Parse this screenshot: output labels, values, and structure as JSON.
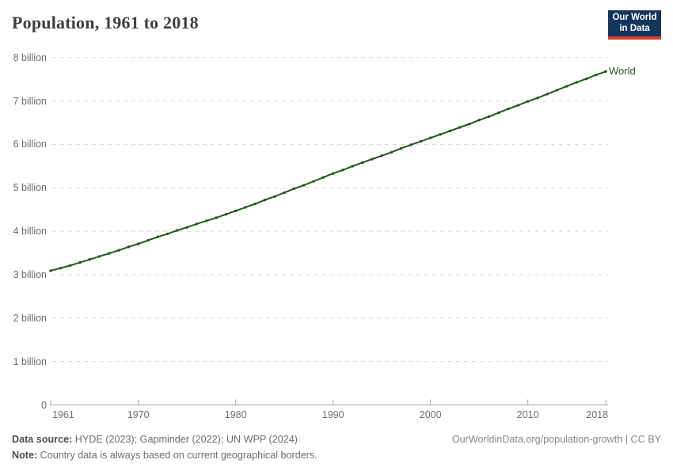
{
  "header": {
    "title": "Population, 1961 to 2018"
  },
  "logo": {
    "line1": "Our World",
    "line2": "in Data",
    "bg_color": "#14355c",
    "accent_color": "#dc3b2f"
  },
  "series_label": "World",
  "footer": {
    "source_label": "Data source:",
    "source_text": " HYDE (2023); Gapminder (2022); UN WPP (2024)",
    "note_label": "Note:",
    "note_text": " Country data is always based on current geographical borders.",
    "link_text": "OurWorldinData.org/population-growth | CC BY"
  },
  "chart_data": {
    "type": "line",
    "title": "Population, 1961 to 2018",
    "xlabel": "",
    "ylabel": "",
    "xlim": [
      1961,
      2018
    ],
    "ylim": [
      0,
      8
    ],
    "grid": "horizontal-dashed",
    "legend_position": "end-of-line",
    "x_ticks": [
      1961,
      1970,
      1980,
      1990,
      2000,
      2010,
      2018
    ],
    "y_ticks": [
      {
        "value": 0,
        "label": "0"
      },
      {
        "value": 1,
        "label": "1 billion"
      },
      {
        "value": 2,
        "label": "2 billion"
      },
      {
        "value": 3,
        "label": "3 billion"
      },
      {
        "value": 4,
        "label": "4 billion"
      },
      {
        "value": 5,
        "label": "5 billion"
      },
      {
        "value": 6,
        "label": "6 billion"
      },
      {
        "value": 7,
        "label": "7 billion"
      },
      {
        "value": 8,
        "label": "8 billion"
      }
    ],
    "x": [
      1961,
      1962,
      1963,
      1964,
      1965,
      1966,
      1967,
      1968,
      1969,
      1970,
      1971,
      1972,
      1973,
      1974,
      1975,
      1976,
      1977,
      1978,
      1979,
      1980,
      1981,
      1982,
      1983,
      1984,
      1985,
      1986,
      1987,
      1988,
      1989,
      1990,
      1991,
      1992,
      1993,
      1994,
      1995,
      1996,
      1997,
      1998,
      1999,
      2000,
      2001,
      2002,
      2003,
      2004,
      2005,
      2006,
      2007,
      2008,
      2009,
      2010,
      2011,
      2012,
      2013,
      2014,
      2015,
      2016,
      2017,
      2018
    ],
    "series": [
      {
        "name": "World",
        "unit": "billion",
        "color": "#1e5c16",
        "values": [
          3.09,
          3.15,
          3.21,
          3.28,
          3.35,
          3.42,
          3.49,
          3.56,
          3.64,
          3.71,
          3.79,
          3.87,
          3.94,
          4.02,
          4.09,
          4.17,
          4.24,
          4.31,
          4.39,
          4.47,
          4.55,
          4.63,
          4.72,
          4.8,
          4.89,
          4.98,
          5.06,
          5.15,
          5.24,
          5.33,
          5.41,
          5.5,
          5.58,
          5.66,
          5.74,
          5.82,
          5.91,
          5.99,
          6.07,
          6.15,
          6.23,
          6.31,
          6.39,
          6.47,
          6.56,
          6.64,
          6.73,
          6.82,
          6.9,
          6.99,
          7.07,
          7.16,
          7.25,
          7.34,
          7.43,
          7.51,
          7.6,
          7.68
        ]
      }
    ]
  }
}
